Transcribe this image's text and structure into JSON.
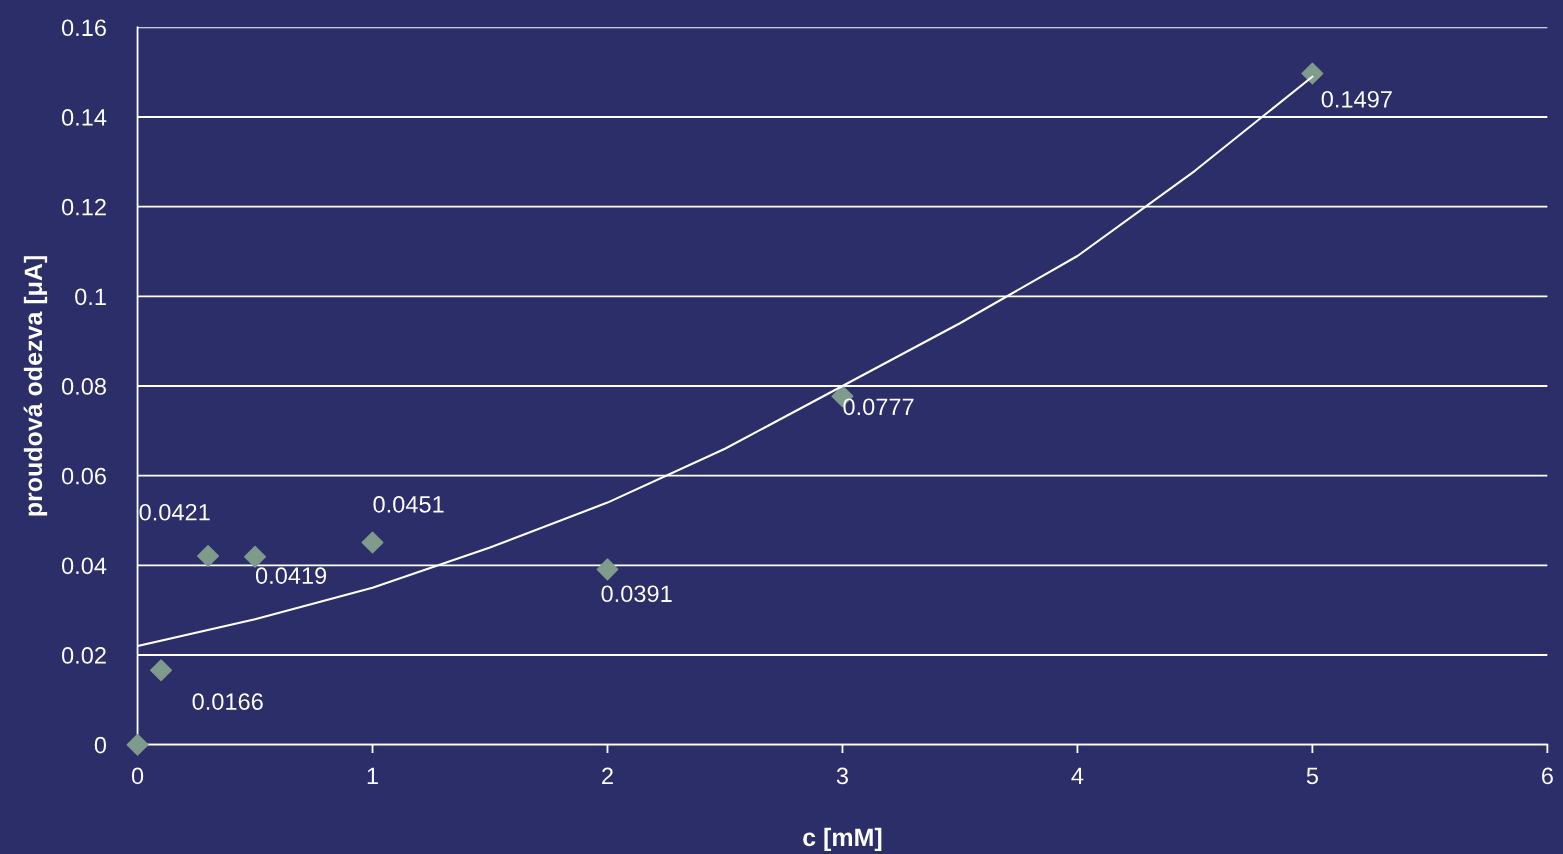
{
  "chart_data": {
    "type": "scatter",
    "xlabel": "c [mM]",
    "ylabel": "proudová odezva [μA]",
    "xlim": [
      0,
      6
    ],
    "xticks": [
      0,
      1,
      2,
      3,
      4,
      5,
      6
    ],
    "ylim": [
      0,
      0.16
    ],
    "yticks": [
      0,
      0.02,
      0.04,
      0.06,
      0.08,
      0.1,
      0.12,
      0.14,
      0.16
    ],
    "grid": "y",
    "series": [
      {
        "marker": "diamond",
        "color": "#7f9b8c",
        "x": [
          0,
          0.1,
          0.3,
          0.5,
          1,
          2,
          3,
          5
        ],
        "values": [
          0,
          0.0166,
          0.0421,
          0.0419,
          0.0451,
          0.0391,
          0.0777,
          0.1497
        ],
        "value_labels": [
          null,
          "0.0166",
          "0.0421",
          "0.0419",
          "0.0451",
          "0.0391",
          "0.0777",
          "0.1497"
        ]
      },
      {
        "type": "line",
        "marker": "none",
        "color": "#ffffff",
        "x": [
          0,
          0.5,
          1,
          1.5,
          2,
          2.5,
          3,
          3.5,
          4,
          4.5,
          5
        ],
        "values": [
          0.022,
          0.028,
          0.035,
          0.044,
          0.054,
          0.066,
          0.08,
          0.094,
          0.109,
          0.128,
          0.149
        ]
      }
    ]
  }
}
